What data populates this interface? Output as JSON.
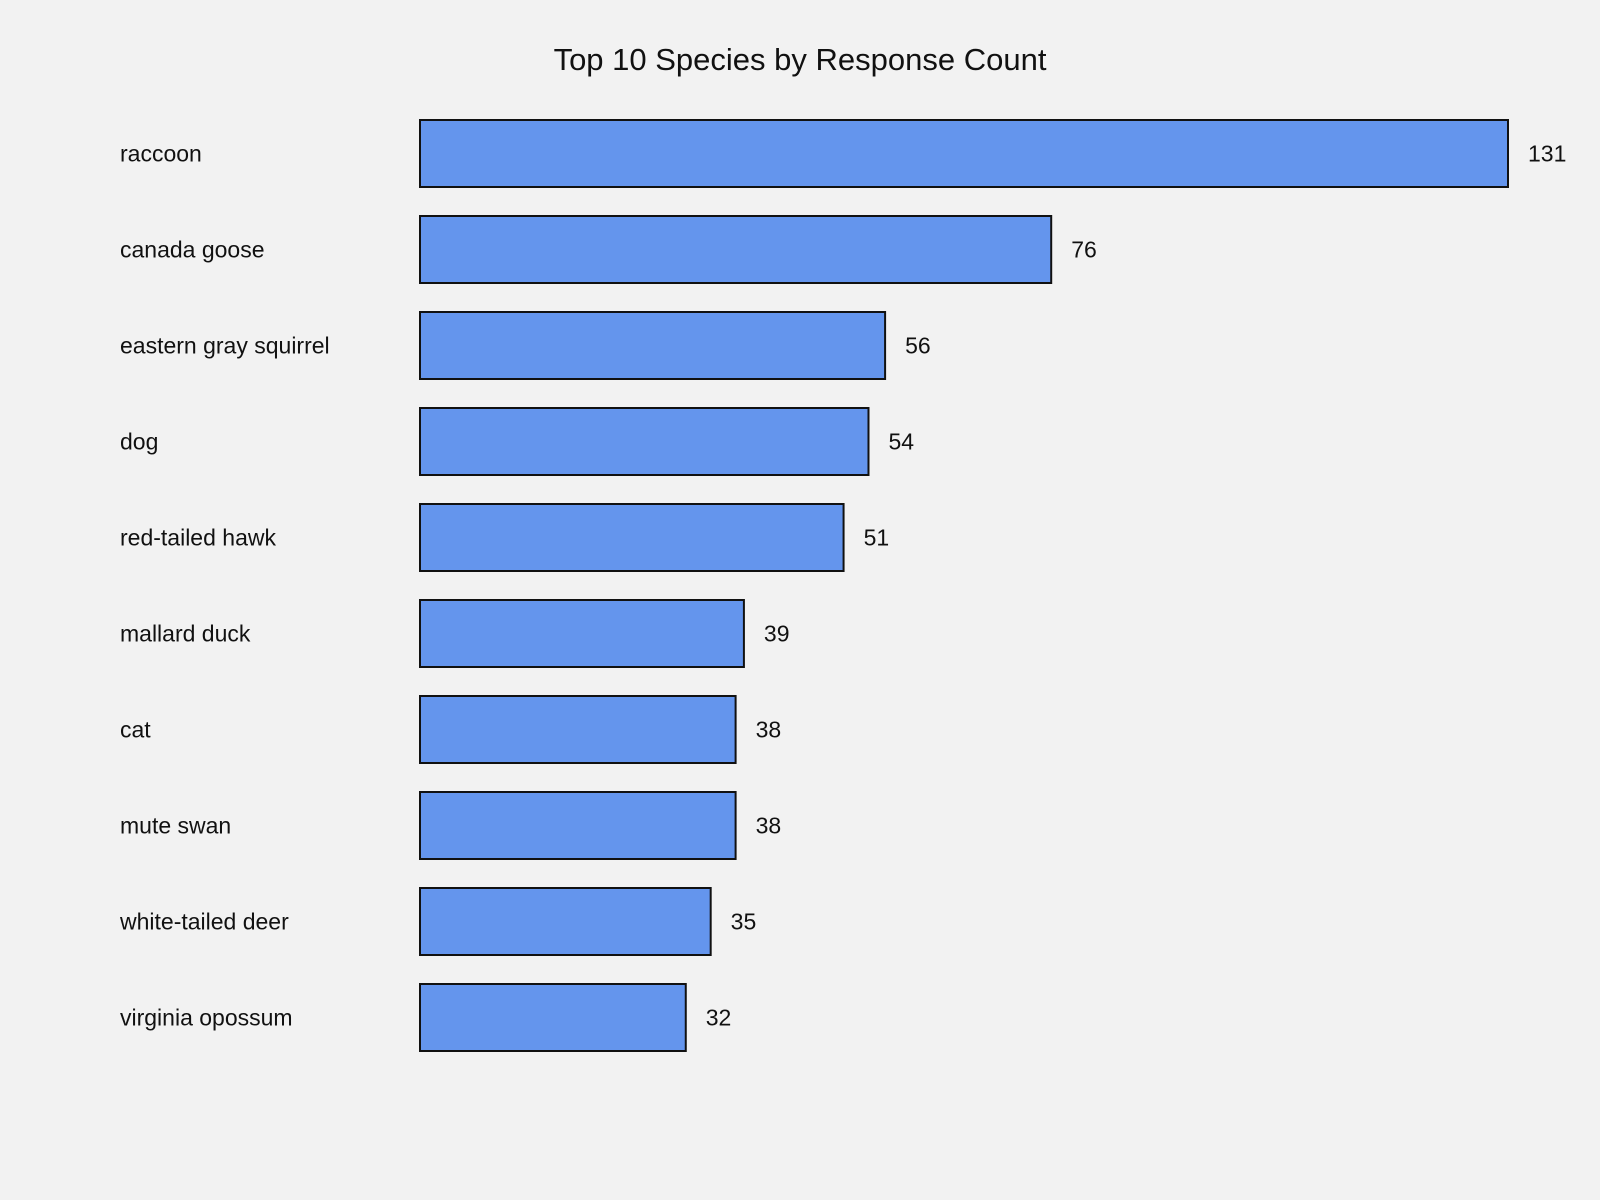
{
  "chart_data": {
    "type": "bar",
    "orientation": "horizontal",
    "title": "Top 10 Species by Response Count",
    "categories": [
      "raccoon",
      "canada goose",
      "eastern gray squirrel",
      "dog",
      "red-tailed hawk",
      "mallard duck",
      "cat",
      "mute swan",
      "white-tailed deer",
      "virginia opossum"
    ],
    "values": [
      131,
      76,
      56,
      54,
      51,
      39,
      38,
      38,
      35,
      32
    ],
    "xlim": [
      0,
      131
    ],
    "grid": false,
    "bar_color": "#6495ed",
    "bar_edge_color": "#111111",
    "background_color": "#f2f2f2"
  }
}
